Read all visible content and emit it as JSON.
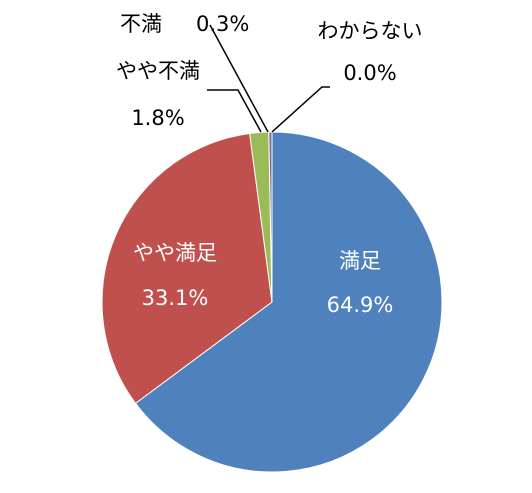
{
  "chart_data": {
    "type": "pie",
    "title": "",
    "slices": [
      {
        "category": "満足",
        "value": 64.9,
        "value_label": "64.9%",
        "color": "#4f81bd"
      },
      {
        "category": "やや満足",
        "value": 33.1,
        "value_label": "33.1%",
        "color": "#c0504d"
      },
      {
        "category": "やや不満",
        "value": 1.8,
        "value_label": "1.8%",
        "color": "#9bbb59"
      },
      {
        "category": "不満",
        "value": 0.3,
        "value_label": "0.3%",
        "color": "#8064a2"
      },
      {
        "category": "わからない",
        "value": 0.0,
        "value_label": "0.0%",
        "color": "#4bacc6"
      }
    ],
    "start_angle_deg": 0,
    "direction": "clockwise",
    "legend": "none",
    "data_labels": "category-and-percent"
  }
}
